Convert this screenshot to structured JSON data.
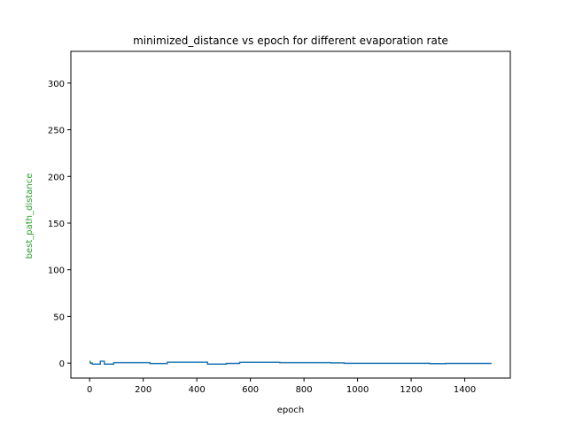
{
  "chart_data": {
    "type": "line",
    "title": "minimized_distance vs epoch for different evaporation rate",
    "xlabel": "epoch",
    "ylabel": "best_path_distance",
    "xlim": [
      -70,
      1570
    ],
    "ylim": [
      -16,
      334
    ],
    "xticks": [
      0,
      200,
      400,
      600,
      800,
      1000,
      1200,
      1400
    ],
    "yticks": [
      0,
      50,
      100,
      150,
      200,
      250,
      300
    ],
    "grid": false,
    "legend": "none",
    "colors": {
      "ylabel": "#2ca02c",
      "axes": "#000000"
    },
    "series": [
      {
        "color": "#1f77b4",
        "x": [
          0,
          10,
          10,
          40,
          40,
          55,
          55,
          90,
          90,
          225,
          225,
          290,
          290,
          440,
          440,
          510,
          510,
          560,
          560,
          710,
          710,
          900,
          900,
          950,
          950,
          1270,
          1270,
          1330,
          1330,
          1500
        ],
        "y": [
          0,
          0,
          -1,
          -1,
          2,
          2,
          -1,
          -1,
          0.5,
          0.5,
          -0.5,
          -0.5,
          1,
          1,
          -1,
          -1,
          -0.3,
          -0.3,
          0.8,
          0.8,
          0.5,
          0.5,
          0.2,
          0.2,
          -0.2,
          -0.2,
          -0.6,
          -0.6,
          -0.4,
          -0.4
        ]
      },
      {
        "color": "#2ca02c",
        "x": [
          0,
          2,
          4,
          6
        ],
        "y": [
          2.5,
          1.5,
          0.5,
          0
        ]
      },
      {
        "color": "#ff7f0e",
        "x": [
          0,
          3
        ],
        "y": [
          0.5,
          0
        ]
      }
    ]
  }
}
